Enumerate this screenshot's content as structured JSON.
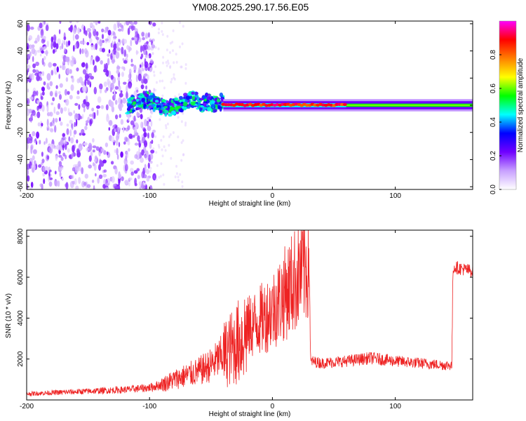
{
  "figure": {
    "title": "YM08.2025.290.17.56.E05"
  },
  "chart_data": [
    {
      "type": "heatmap",
      "name": "spectrogram",
      "xlabel": "Height of straight line (km)",
      "ylabel": "Frequency (Hz)",
      "xlim": [
        -200,
        163
      ],
      "ylim": [
        -62,
        62
      ],
      "xticks": [
        -200,
        -100,
        0,
        100
      ],
      "yticks": [
        -60,
        -40,
        -20,
        0,
        20,
        40,
        60
      ],
      "colorbar": {
        "label": "Normalized spectral amplitude",
        "range": [
          0.0,
          1.0
        ],
        "ticks": [
          "0.0",
          "0.2",
          "0.4",
          "0.6",
          "0.8"
        ],
        "colormap": [
          "#ffffff",
          "#c8a0ff",
          "#7000ff",
          "#0000ff",
          "#00ffff",
          "#00ff00",
          "#ffff00",
          "#ff8000",
          "#ff0000",
          "#ff00ff"
        ]
      },
      "regions": [
        {
          "x_range": [
            -200,
            -96
          ],
          "freq_range": [
            -62,
            62
          ],
          "amplitude": 0.05,
          "pattern": "scattered noise"
        },
        {
          "x_range": [
            -118,
            -40
          ],
          "freq_range": [
            -8,
            12
          ],
          "amplitude": 0.35,
          "pattern": "wavy signal band"
        },
        {
          "x_range": [
            -40,
            60
          ],
          "freq_range": [
            -2,
            2
          ],
          "amplitude": 0.9,
          "pattern": "strong line near 0 Hz"
        },
        {
          "x_range": [
            60,
            163
          ],
          "freq_range": [
            -3,
            3
          ],
          "amplitude": 0.55,
          "pattern": "steady line near 0 Hz"
        }
      ]
    },
    {
      "type": "line",
      "name": "snr",
      "xlabel": "Height of straight line (km)",
      "ylabel": "SNR (10 * v/v)",
      "xlim": [
        -200,
        163
      ],
      "ylim": [
        0,
        8300
      ],
      "xticks": [
        -200,
        -100,
        0,
        100
      ],
      "yticks": [
        2000,
        4000,
        6000,
        8000
      ],
      "series": [
        {
          "color": "#ee2222",
          "x": [
            -200,
            -180,
            -160,
            -140,
            -120,
            -100,
            -90,
            -80,
            -70,
            -60,
            -50,
            -40,
            -30,
            -25,
            -20,
            -10,
            0,
            10,
            20,
            28,
            30,
            31,
            40,
            60,
            80,
            100,
            120,
            140,
            146,
            147,
            163
          ],
          "y": [
            300,
            350,
            400,
            450,
            500,
            600,
            750,
            1000,
            1200,
            1400,
            1700,
            2200,
            2700,
            3000,
            3500,
            3900,
            4400,
            5200,
            6000,
            6600,
            6800,
            1900,
            1800,
            1900,
            2050,
            1900,
            1800,
            1700,
            1700,
            6500,
            6300
          ]
        }
      ]
    }
  ]
}
